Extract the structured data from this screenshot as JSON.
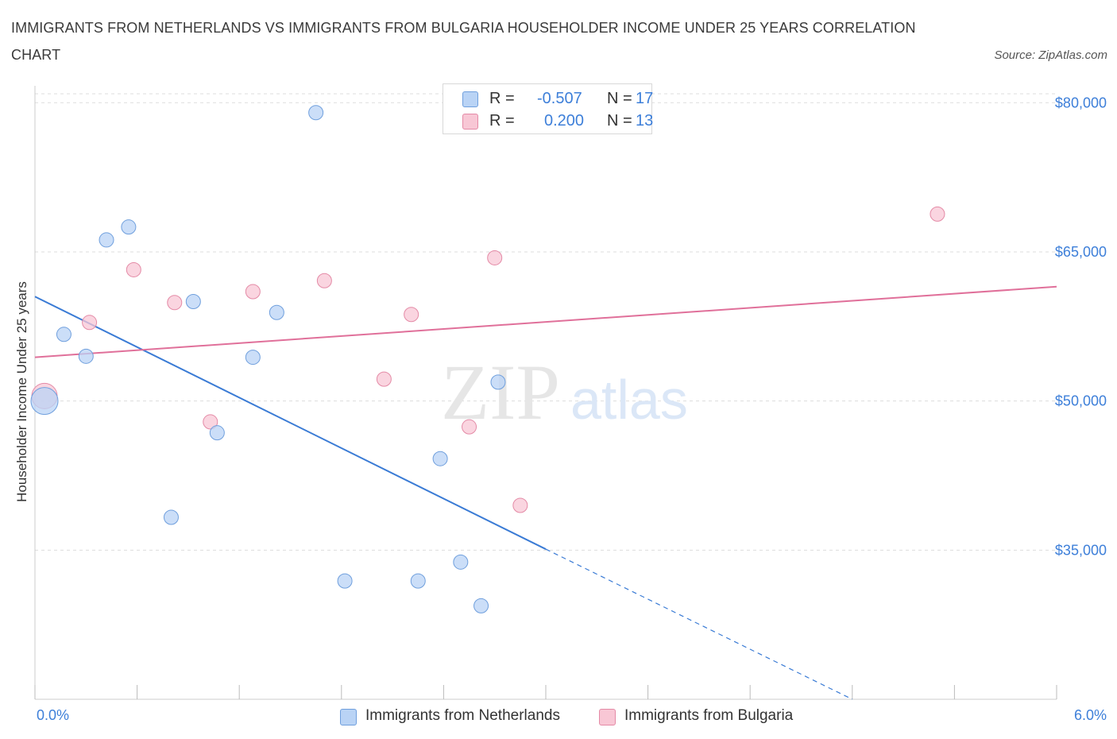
{
  "title": "IMMIGRANTS FROM NETHERLANDS VS IMMIGRANTS FROM BULGARIA HOUSEHOLDER INCOME UNDER 25 YEARS CORRELATION CHART",
  "source": "Source: ZipAtlas.com",
  "colors": {
    "netherlands_fill": "#b9d3f5",
    "netherlands_stroke": "#6f9fdd",
    "netherlands_line": "#3a7bd5",
    "bulgaria_fill": "#f8c7d5",
    "bulgaria_stroke": "#e48aa6",
    "bulgaria_line": "#e0709a",
    "tick_text": "#3d7fd9",
    "grid": "#dddddd"
  },
  "stats": [
    {
      "r_label": "R =",
      "r_value": "-0.507",
      "n_label": "N =",
      "n_value": "17"
    },
    {
      "r_label": "R =",
      "r_value": "0.200",
      "n_label": "N =",
      "n_value": "13"
    }
  ],
  "chart_data": {
    "type": "scatter",
    "title": "IMMIGRANTS FROM NETHERLANDS VS IMMIGRANTS FROM BULGARIA HOUSEHOLDER INCOME UNDER 25 YEARS CORRELATION CHART",
    "xlabel": "",
    "ylabel": "Householder Income Under 25 years",
    "x_tick_labels": [
      "0.0%",
      "6.0%"
    ],
    "y_tick_labels": [
      "$80,000",
      "$65,000",
      "$50,000",
      "$35,000"
    ],
    "y_ticks": [
      80000,
      65000,
      50000,
      35000
    ],
    "xlim": [
      0,
      6
    ],
    "ylim": [
      20000,
      80900
    ],
    "grid": true,
    "legend_position": "bottom-center",
    "series": [
      {
        "name": "Immigrants from Netherlands",
        "x": [
          0.0,
          0.17,
          0.3,
          0.42,
          0.55,
          0.8,
          0.93,
          1.07,
          1.28,
          1.42,
          1.65,
          1.82,
          2.25,
          2.38,
          2.5,
          2.72,
          2.62
        ],
        "y": [
          50000,
          56700,
          54500,
          66200,
          67500,
          38300,
          60000,
          46800,
          54400,
          58900,
          79000,
          31900,
          31900,
          44200,
          33800,
          51900,
          29400
        ],
        "sizes": [
          34,
          18,
          18,
          18,
          18,
          18,
          18,
          18,
          18,
          18,
          18,
          18,
          18,
          18,
          18,
          18,
          18
        ],
        "trend": {
          "x": [
            0.0,
            3.0,
            4.8
          ],
          "y": [
            60500,
            35100,
            20000
          ],
          "solid_until_x": 3.0
        }
      },
      {
        "name": "Immigrants from Bulgaria",
        "x": [
          0.0,
          0.32,
          0.58,
          0.82,
          1.03,
          1.28,
          1.7,
          2.05,
          2.21,
          2.55,
          2.7,
          2.85,
          5.3
        ],
        "y": [
          50500,
          57900,
          63200,
          59900,
          47900,
          61000,
          62100,
          52200,
          58700,
          47400,
          64400,
          39500,
          68800
        ],
        "sizes": [
          32,
          18,
          18,
          18,
          18,
          18,
          18,
          18,
          18,
          18,
          18,
          18,
          18
        ],
        "trend": {
          "x": [
            0.0,
            6.0
          ],
          "y": [
            54400,
            61500
          ]
        }
      }
    ]
  }
}
